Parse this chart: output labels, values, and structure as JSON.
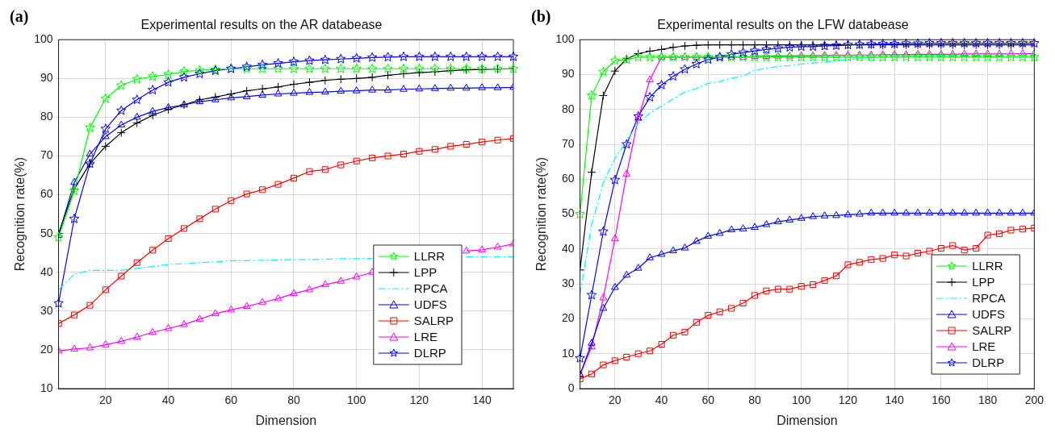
{
  "chart_data": [
    {
      "type": "line",
      "title": "Experimental results on the AR databease",
      "xlabel": "Dimension",
      "ylabel": "Recognition rate(%)",
      "annotations": [
        "(a)"
      ],
      "x": [
        5,
        10,
        15,
        20,
        25,
        30,
        35,
        40,
        45,
        50,
        55,
        60,
        65,
        70,
        75,
        80,
        85,
        90,
        95,
        100,
        105,
        110,
        115,
        120,
        125,
        130,
        135,
        140,
        145,
        150
      ],
      "xlim": [
        5,
        150
      ],
      "xticks": [
        20,
        40,
        60,
        80,
        100,
        120,
        140
      ],
      "ylim": [
        10,
        100
      ],
      "yticks": [
        10,
        20,
        30,
        40,
        50,
        60,
        70,
        80,
        90,
        100
      ],
      "grid": true,
      "legend": "right",
      "series": [
        {
          "name": "LLRR",
          "color": "#00ff00",
          "marker": "star",
          "line_style": "solid",
          "values": [
            49,
            61,
            77.3,
            84.8,
            88.2,
            89.8,
            90.5,
            91,
            91.8,
            92.1,
            92.3,
            92.5,
            92.5,
            92.5,
            92.5,
            92.5,
            92.5,
            92.5,
            92.5,
            92.5,
            92.5,
            92.5,
            92.5,
            92.5,
            92.5,
            92.5,
            92.5,
            92.5,
            92.5,
            92.5
          ]
        },
        {
          "name": "LPP",
          "color": "#000000",
          "marker": "cross",
          "line_style": "solid",
          "values": [
            50,
            61.5,
            68,
            72.5,
            76,
            78.5,
            80.5,
            82,
            83.2,
            84.5,
            85.2,
            86,
            86.8,
            87.3,
            87.8,
            88.5,
            89,
            89.5,
            89.8,
            90,
            90.3,
            90.8,
            91.2,
            91.5,
            91.7,
            92,
            92.2,
            92.3,
            92.4,
            92.5
          ]
        },
        {
          "name": "RPCA",
          "color": "#00ffff",
          "marker": "none",
          "line_style": "dashed",
          "values": [
            35.5,
            39.5,
            40.5,
            40.5,
            40.5,
            41,
            41.5,
            42,
            42.2,
            42.5,
            42.7,
            43,
            43,
            43.1,
            43.2,
            43.3,
            43.3,
            43.4,
            43.5,
            43.5,
            43.6,
            null,
            null,
            null,
            null,
            null,
            44,
            44,
            44,
            44
          ]
        },
        {
          "name": "UDFS",
          "color": "#0000ff",
          "marker": "triangle",
          "line_style": "solid",
          "values": [
            49.5,
            63.2,
            70.5,
            75,
            78,
            80,
            81.5,
            82.5,
            83.2,
            84,
            84.5,
            85,
            85.3,
            85.7,
            86,
            86.2,
            86.4,
            86.5,
            86.7,
            86.8,
            87,
            87,
            87.2,
            87.3,
            87.4,
            87.5,
            87.5,
            87.6,
            87.6,
            87.7
          ]
        },
        {
          "name": "SALRP",
          "color": "#ff0000",
          "marker": "square",
          "line_style": "solid",
          "values": [
            26.8,
            29,
            31.5,
            35.5,
            39,
            42.5,
            45.7,
            48.7,
            51.3,
            53.8,
            56.3,
            58.5,
            60.2,
            61.3,
            62.7,
            64.3,
            66,
            66.5,
            67.7,
            68.7,
            69.5,
            70,
            70.5,
            71.2,
            71.7,
            72.5,
            73,
            73.6,
            74.1,
            74.5
          ]
        },
        {
          "name": "LRE",
          "color": "#ff00ff",
          "marker": "triangle",
          "line_style": "solid",
          "values": [
            19.7,
            20.2,
            20.5,
            21.3,
            22.2,
            23.3,
            24.5,
            25.5,
            26.5,
            27.9,
            29.3,
            30.3,
            31.2,
            32.2,
            33.2,
            34.5,
            35.5,
            36.8,
            37.7,
            38.8,
            40,
            null,
            null,
            null,
            null,
            null,
            45.5,
            45.8,
            46.5,
            47.3
          ]
        },
        {
          "name": "DLRP",
          "color": "#0000ff",
          "marker": "star",
          "line_style": "solid",
          "values": [
            32,
            53.8,
            68,
            77,
            81.7,
            84.5,
            87,
            89,
            90.3,
            91.2,
            92,
            92.5,
            93,
            93.5,
            93.9,
            94.3,
            94.6,
            94.8,
            95,
            95.2,
            95.4,
            95.5,
            95.6,
            95.6,
            95.6,
            95.6,
            95.6,
            95.6,
            95.6,
            95.6
          ]
        }
      ]
    },
    {
      "type": "line",
      "title": "Experimental results on the LFW databease",
      "xlabel": "Dimension",
      "ylabel": "Recognition rate(%)",
      "annotations": [
        "(b)"
      ],
      "x": [
        5,
        10,
        15,
        20,
        25,
        30,
        35,
        40,
        45,
        50,
        55,
        60,
        65,
        70,
        75,
        80,
        85,
        90,
        95,
        100,
        105,
        110,
        115,
        120,
        125,
        130,
        135,
        140,
        145,
        150,
        155,
        160,
        165,
        170,
        175,
        180,
        185,
        190,
        195,
        200
      ],
      "xlim": [
        5,
        200
      ],
      "xticks": [
        20,
        40,
        60,
        80,
        100,
        120,
        140,
        160,
        180,
        200
      ],
      "ylim": [
        0,
        100
      ],
      "yticks": [
        0,
        10,
        20,
        30,
        40,
        50,
        60,
        70,
        80,
        90,
        100
      ],
      "grid": true,
      "legend": "bottom right",
      "series": [
        {
          "name": "LLRR",
          "color": "#00ff00",
          "marker": "star",
          "line_style": "solid",
          "values": [
            50,
            84,
            90.8,
            94,
            94.3,
            95,
            95,
            95,
            95,
            95,
            95,
            95,
            95,
            95,
            95,
            95,
            95,
            95,
            95,
            95,
            95,
            95,
            95,
            95,
            95,
            95,
            95,
            95,
            95,
            95,
            95,
            95,
            95,
            95,
            95,
            95,
            95,
            95,
            95,
            95
          ]
        },
        {
          "name": "LPP",
          "color": "#000000",
          "marker": "cross",
          "line_style": "solid",
          "values": [
            34,
            62,
            84,
            91,
            94.5,
            96,
            96.7,
            97.2,
            97.8,
            98.2,
            98.4,
            98.5,
            98.5,
            98.5,
            98.5,
            98.5,
            98.5,
            98.5,
            98.5,
            98.5,
            98.5,
            98.5,
            98.5,
            98.5,
            98.5,
            98.5,
            98.5,
            98.5,
            98.5,
            98.5,
            98.5,
            98.5,
            98.5,
            98.5,
            98.5,
            98.5,
            98.5,
            98.5,
            98.5,
            98.5
          ]
        },
        {
          "name": "RPCA",
          "color": "#00ffff",
          "marker": "none",
          "line_style": "dashed",
          "values": [
            27,
            47,
            59,
            66,
            71,
            76,
            79,
            81,
            83,
            85,
            86,
            87.5,
            88,
            89,
            89.5,
            91.3,
            91.8,
            92.3,
            92.6,
            93,
            93.3,
            93.6,
            94,
            94.3,
            94.6,
            94.8,
            95,
            95.2,
            95.3,
            95.4,
            95.5,
            95.5,
            95.6,
            95.6,
            95.7,
            95.7,
            95.8,
            95.8,
            95.8,
            95.8
          ]
        },
        {
          "name": "UDFS",
          "color": "#0000ff",
          "marker": "triangle",
          "line_style": "solid",
          "values": [
            4,
            13,
            23,
            29,
            32.5,
            34.5,
            37.5,
            38.5,
            39.5,
            40.3,
            42.2,
            43.7,
            44.5,
            45.5,
            45.8,
            46.2,
            47,
            47.8,
            48.3,
            48.8,
            49.3,
            49.5,
            49.6,
            49.8,
            50,
            50.3,
            50.3,
            50.3,
            50.3,
            50.3,
            50.3,
            50.3,
            50.3,
            50.3,
            50.3,
            50.3,
            50.3,
            50.3,
            50.3,
            50.3
          ]
        },
        {
          "name": "SALRP",
          "color": "#ff0000",
          "marker": "square",
          "line_style": "solid",
          "values": [
            2.8,
            4.2,
            6.8,
            8,
            9,
            10,
            10.8,
            12.7,
            15.3,
            16.2,
            19,
            21,
            22,
            23,
            24.5,
            26.7,
            28,
            28.5,
            28.5,
            29.3,
            29.8,
            31,
            32.3,
            35.5,
            36.2,
            37,
            37.3,
            38.3,
            38,
            38.8,
            39.4,
            40.2,
            41,
            39.7,
            40.2,
            44,
            44.4,
            45.4,
            45.7,
            46
          ]
        },
        {
          "name": "LRE",
          "color": "#ff00ff",
          "marker": "triangle",
          "line_style": "solid",
          "values": [
            4,
            12,
            26,
            43,
            61.5,
            77.5,
            88.5,
            95,
            95,
            95,
            95,
            95,
            95,
            95,
            95,
            95.2,
            95.2,
            95.3,
            95.3,
            95.4,
            95.4,
            95.5,
            95.5,
            95.6,
            95.6,
            95.6,
            95.7,
            95.7,
            95.7,
            95.8,
            95.8,
            95.8,
            95.8,
            95.9,
            95.9,
            95.9,
            95.9,
            96,
            96,
            96
          ]
        },
        {
          "name": "DLRP",
          "color": "#0000ff",
          "marker": "star",
          "line_style": "solid",
          "values": [
            8.7,
            26.8,
            45,
            59.8,
            70,
            78,
            83.5,
            87,
            89.5,
            91.5,
            93,
            94.3,
            95,
            95.8,
            96.3,
            96.8,
            97.2,
            97.5,
            97.8,
            98,
            98,
            98.2,
            98.3,
            98.5,
            98.6,
            98.7,
            98.8,
            98.8,
            98.9,
            98.9,
            99,
            99,
            99,
            99,
            99,
            99,
            99,
            99,
            99,
            99
          ]
        }
      ]
    }
  ]
}
